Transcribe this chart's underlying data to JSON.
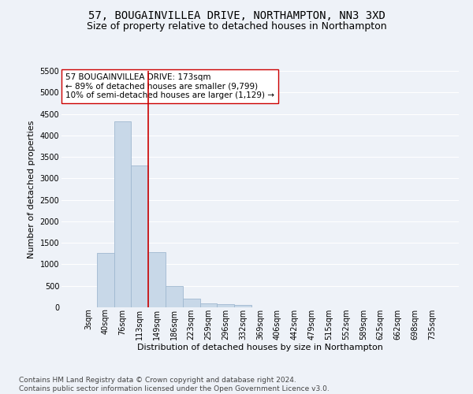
{
  "title": "57, BOUGAINVILLEA DRIVE, NORTHAMPTON, NN3 3XD",
  "subtitle": "Size of property relative to detached houses in Northampton",
  "xlabel": "Distribution of detached houses by size in Northampton",
  "ylabel": "Number of detached properties",
  "bar_color": "#c8d8e8",
  "bar_edgecolor": "#a0b8d0",
  "bg_color": "#eef2f8",
  "grid_color": "#ffffff",
  "bin_labels": [
    "3sqm",
    "40sqm",
    "76sqm",
    "113sqm",
    "149sqm",
    "186sqm",
    "223sqm",
    "259sqm",
    "296sqm",
    "332sqm",
    "369sqm",
    "406sqm",
    "442sqm",
    "479sqm",
    "515sqm",
    "552sqm",
    "589sqm",
    "625sqm",
    "662sqm",
    "698sqm",
    "735sqm"
  ],
  "bar_values": [
    0,
    1270,
    4330,
    3300,
    1290,
    490,
    210,
    90,
    70,
    60,
    0,
    0,
    0,
    0,
    0,
    0,
    0,
    0,
    0,
    0,
    0
  ],
  "vline_color": "#cc0000",
  "vline_x_index": 4,
  "annotation_text": "57 BOUGAINVILLEA DRIVE: 173sqm\n← 89% of detached houses are smaller (9,799)\n10% of semi-detached houses are larger (1,129) →",
  "annotation_box_color": "#ffffff",
  "annotation_box_edgecolor": "#cc0000",
  "ylim": [
    0,
    5500
  ],
  "yticks": [
    0,
    500,
    1000,
    1500,
    2000,
    2500,
    3000,
    3500,
    4000,
    4500,
    5000,
    5500
  ],
  "footer": "Contains HM Land Registry data © Crown copyright and database right 2024.\nContains public sector information licensed under the Open Government Licence v3.0.",
  "title_fontsize": 10,
  "subtitle_fontsize": 9,
  "axis_label_fontsize": 8,
  "tick_fontsize": 7,
  "annotation_fontsize": 7.5,
  "footer_fontsize": 6.5
}
